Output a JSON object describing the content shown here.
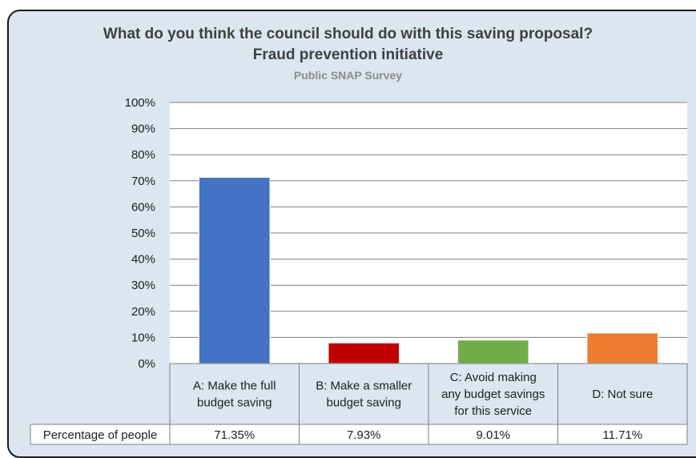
{
  "chart_data": {
    "type": "bar",
    "title": "What do you think the council should do with this saving proposal?",
    "title_line2": "Fraud prevention initiative",
    "subtitle": "Public SNAP Survey",
    "categories": [
      [
        "A:  Make the full",
        "budget saving"
      ],
      [
        "B:  Make a smaller",
        "budget saving"
      ],
      [
        "C:  Avoid making",
        "any budget savings",
        "for this service"
      ],
      [
        "D:  Not sure"
      ]
    ],
    "values": [
      71.35,
      7.93,
      9.01,
      11.71
    ],
    "value_labels": [
      "71.35%",
      "7.93%",
      "9.01%",
      "11.71%"
    ],
    "colors": [
      "#4472c4",
      "#c00000",
      "#70ad47",
      "#ed7d31"
    ],
    "row_label": "Percentage of people",
    "ylim": [
      0,
      100
    ],
    "yticks": [
      "0%",
      "10%",
      "20%",
      "30%",
      "40%",
      "50%",
      "60%",
      "70%",
      "80%",
      "90%",
      "100%"
    ],
    "grid": true
  }
}
